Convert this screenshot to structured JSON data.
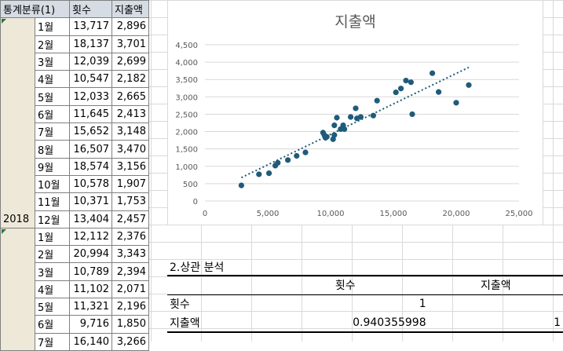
{
  "table": {
    "headers": [
      "통계분류(1)",
      "횟수",
      "지출액"
    ],
    "year": "2018",
    "rows": [
      {
        "month": "1월",
        "count": "13,717",
        "spend": "2,896"
      },
      {
        "month": "2월",
        "count": "18,137",
        "spend": "3,701"
      },
      {
        "month": "3월",
        "count": "12,039",
        "spend": "2,699"
      },
      {
        "month": "4월",
        "count": "10,547",
        "spend": "2,182"
      },
      {
        "month": "5월",
        "count": "12,033",
        "spend": "2,665"
      },
      {
        "month": "6월",
        "count": "11,645",
        "spend": "2,413"
      },
      {
        "month": "7월",
        "count": "15,652",
        "spend": "3,148"
      },
      {
        "month": "8월",
        "count": "16,507",
        "spend": "3,470"
      },
      {
        "month": "9월",
        "count": "18,574",
        "spend": "3,156"
      },
      {
        "month": "10월",
        "count": "10,578",
        "spend": "1,907"
      },
      {
        "month": "11월",
        "count": "10,371",
        "spend": "1,753"
      },
      {
        "month": "12월",
        "count": "13,404",
        "spend": "2,457"
      },
      {
        "month": "1월",
        "count": "12,112",
        "spend": "2,376"
      },
      {
        "month": "2월",
        "count": "20,994",
        "spend": "3,343"
      },
      {
        "month": "3월",
        "count": "10,789",
        "spend": "2,394"
      },
      {
        "month": "4월",
        "count": "11,102",
        "spend": "2,071"
      },
      {
        "month": "5월",
        "count": "11,321",
        "spend": "2,196"
      },
      {
        "month": "6월",
        "count": "9,716",
        "spend": "1,850"
      },
      {
        "month": "7월",
        "count": "16,140",
        "spend": "3,266"
      }
    ]
  },
  "chart_data": {
    "type": "scatter",
    "title": "지출액",
    "xlim": [
      0,
      25000
    ],
    "ylim": [
      0,
      4500
    ],
    "x_ticks": [
      "0",
      "5,000",
      "10,000",
      "15,000",
      "20,000",
      "25,000"
    ],
    "y_ticks": [
      "0",
      "500",
      "1,000",
      "1,500",
      "2,000",
      "2,500",
      "3,000",
      "3,500",
      "4,000",
      "4,500"
    ],
    "trendline": "linear, dotted",
    "grid": "horizontal",
    "series": [
      {
        "color": "#1f5b7a",
        "points": [
          [
            2900,
            450
          ],
          [
            4300,
            770
          ],
          [
            5100,
            800
          ],
          [
            5600,
            1020
          ],
          [
            5800,
            1100
          ],
          [
            6600,
            1180
          ],
          [
            7300,
            1300
          ],
          [
            8000,
            1400
          ],
          [
            9400,
            1970
          ],
          [
            9500,
            1900
          ],
          [
            9600,
            1820
          ],
          [
            9700,
            1850
          ],
          [
            10200,
            1780
          ],
          [
            10300,
            1900
          ],
          [
            10300,
            2180
          ],
          [
            10500,
            2400
          ],
          [
            10800,
            2070
          ],
          [
            11000,
            2180
          ],
          [
            11100,
            2070
          ],
          [
            11600,
            2420
          ],
          [
            12000,
            2670
          ],
          [
            12100,
            2380
          ],
          [
            12400,
            2420
          ],
          [
            13400,
            2460
          ],
          [
            13700,
            2890
          ],
          [
            15200,
            3130
          ],
          [
            15600,
            3240
          ],
          [
            16000,
            3470
          ],
          [
            16400,
            3420
          ],
          [
            16500,
            2500
          ],
          [
            18100,
            3680
          ],
          [
            18600,
            3140
          ],
          [
            20000,
            2830
          ],
          [
            21000,
            3340
          ]
        ]
      }
    ]
  },
  "correlation": {
    "title": "2.상관 분석",
    "col1": "횟수",
    "col2": "지출액",
    "row1_label": "횟수",
    "row1_v1": "1",
    "row2_label": "지출액",
    "row2_v1": "0.940355998",
    "row2_v2": "1"
  },
  "colors": {
    "header_bg": "#d6dce4",
    "year_bg": "#ede8d8",
    "marker": "#1f5b7a"
  }
}
